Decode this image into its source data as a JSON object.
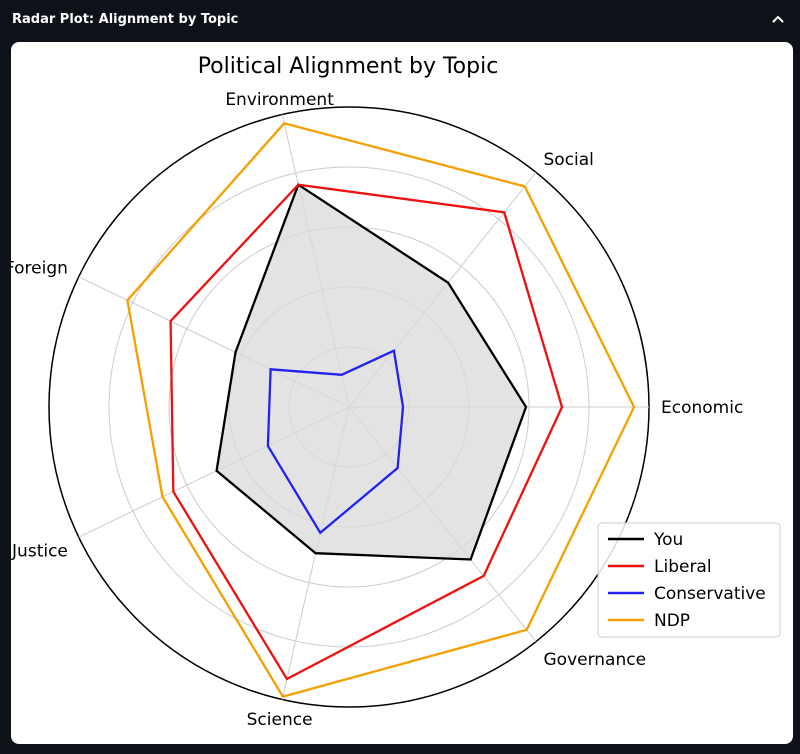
{
  "panel": {
    "title": "Radar Plot: Alignment by Topic",
    "collapse_icon": "chevron-up-icon"
  },
  "chart_data": {
    "type": "radar",
    "title": "Political Alignment by Topic",
    "categories": [
      "Economic",
      "Social",
      "Environment",
      "Foreign",
      "Justice",
      "Science",
      "Governance"
    ],
    "rlim": [
      0,
      10
    ],
    "rticks": [
      2,
      4,
      6,
      8,
      10
    ],
    "grid": true,
    "legend_position": "lower-right",
    "series": [
      {
        "name": "You",
        "color": "#000000",
        "fill": "#d9d9d9",
        "values": [
          5.9,
          5.3,
          7.6,
          4.2,
          4.9,
          5.0,
          6.5
        ]
      },
      {
        "name": "Liberal",
        "color": "#ee1111",
        "values": [
          7.1,
          8.3,
          7.6,
          6.6,
          6.5,
          9.3,
          7.2
        ]
      },
      {
        "name": "Conservative",
        "color": "#2222ee",
        "values": [
          1.8,
          2.4,
          1.1,
          2.9,
          3.0,
          4.3,
          2.6
        ]
      },
      {
        "name": "NDP",
        "color": "#f5a000",
        "values": [
          9.5,
          9.4,
          9.7,
          8.2,
          6.9,
          9.9,
          9.5
        ]
      }
    ]
  }
}
